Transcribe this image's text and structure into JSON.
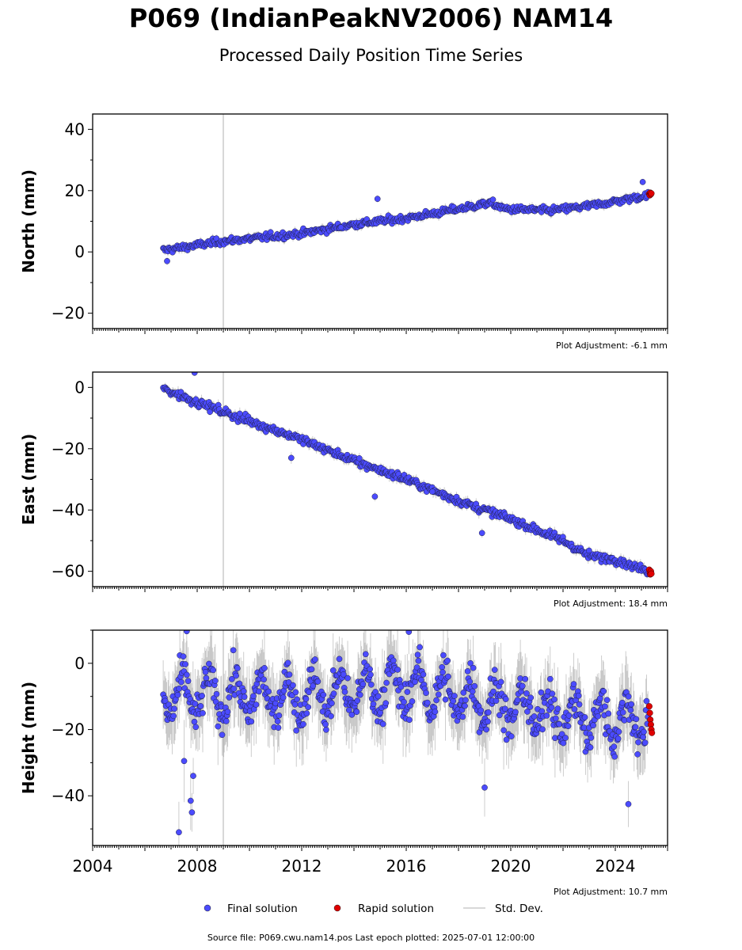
{
  "page": {
    "title": "P069 (IndianPeakNV2006) NAM14",
    "subtitle": "Processed Daily Position Time Series"
  },
  "footer": {
    "source": "Source file: P069.cwu.nam14.pos  Last epoch plotted: 2025-07-01 12:00:00"
  },
  "legend": {
    "items": [
      {
        "label": "Final solution",
        "color": "#4b4bff",
        "kind": "dot"
      },
      {
        "label": "Rapid solution",
        "color": "#e00000",
        "kind": "dot"
      },
      {
        "label": "Std. Dev.",
        "color": "#cccccc",
        "kind": "line"
      }
    ]
  },
  "chart_data": [
    {
      "type": "scatter",
      "ylabel": "North (mm)",
      "xlim": [
        2004.0,
        2026.0
      ],
      "ylim": [
        -25,
        45
      ],
      "yticks": [
        -20,
        0,
        20,
        40
      ],
      "adjustment_label": "Plot Adjustment: -6.1 mm",
      "event_line_x": 2009.0,
      "final_series": {
        "name": "Final solution",
        "x_start": 2006.7,
        "x_end": 2025.25,
        "y_start": 0.5,
        "y_end": 18.5,
        "scatter_sd": 1.0,
        "n": 520,
        "trend_nodes": [
          [
            2006.7,
            0.5
          ],
          [
            2009.0,
            3.5
          ],
          [
            2012.0,
            6.0
          ],
          [
            2014.0,
            9.0
          ],
          [
            2016.0,
            11.0
          ],
          [
            2018.0,
            14.0
          ],
          [
            2019.2,
            16.0
          ],
          [
            2019.8,
            14.0
          ],
          [
            2021.5,
            13.5
          ],
          [
            2023.0,
            15.0
          ],
          [
            2024.0,
            16.5
          ],
          [
            2025.25,
            18.5
          ]
        ]
      },
      "rapid_series": {
        "name": "Rapid solution",
        "x": [
          2025.3,
          2025.32,
          2025.34,
          2025.36,
          2025.38
        ],
        "y": [
          19.0,
          18.5,
          19.3,
          18.8,
          19.1
        ]
      },
      "outliers": [
        [
          2006.85,
          -3.0
        ],
        [
          2014.9,
          17.3
        ],
        [
          2025.05,
          22.8
        ],
        [
          2013.5,
          8.0
        ]
      ]
    },
    {
      "type": "scatter",
      "ylabel": "East (mm)",
      "xlim": [
        2004.0,
        2026.0
      ],
      "ylim": [
        -65,
        5
      ],
      "yticks": [
        -60,
        -40,
        -20,
        0
      ],
      "adjustment_label": "Plot Adjustment: 18.4 mm",
      "event_line_x": 2009.0,
      "final_series": {
        "name": "Final solution",
        "x_start": 2006.7,
        "x_end": 2025.25,
        "y_start": -0.5,
        "y_end": -60.0,
        "scatter_sd": 1.2,
        "n": 520,
        "trend_nodes": [
          [
            2006.7,
            -0.5
          ],
          [
            2009.0,
            -8.0
          ],
          [
            2012.0,
            -17.0
          ],
          [
            2014.0,
            -24.0
          ],
          [
            2016.0,
            -30.0
          ],
          [
            2018.0,
            -37.0
          ],
          [
            2020.0,
            -43.0
          ],
          [
            2022.0,
            -50.0
          ],
          [
            2023.0,
            -55.0
          ],
          [
            2024.0,
            -56.0
          ],
          [
            2025.25,
            -60.0
          ]
        ]
      },
      "rapid_series": {
        "name": "Rapid solution",
        "x": [
          2025.3,
          2025.32,
          2025.34,
          2025.36,
          2025.38
        ],
        "y": [
          -59.5,
          -60.5,
          -61.0,
          -60.0,
          -60.8
        ]
      },
      "outliers": [
        [
          2007.9,
          4.8
        ],
        [
          2014.8,
          -35.6
        ],
        [
          2017.0,
          -34.0
        ],
        [
          2018.9,
          -47.5
        ],
        [
          2011.6,
          -23.0
        ]
      ]
    },
    {
      "type": "scatter",
      "ylabel": "Height (mm)",
      "xlim": [
        2004.0,
        2026.0
      ],
      "ylim": [
        -55,
        10
      ],
      "yticks": [
        -40,
        -20,
        0
      ],
      "xticks": [
        2004,
        2008,
        2012,
        2016,
        2020,
        2024
      ],
      "adjustment_label": "Plot Adjustment: 10.7 mm",
      "event_line_x": 2009.0,
      "final_series": {
        "name": "Final solution",
        "x_start": 2006.7,
        "x_end": 2025.25,
        "y_start": -10.0,
        "y_end": -17.0,
        "scatter_sd": 5.0,
        "n": 700,
        "seasonal_amplitude": 6.0,
        "trend_nodes": [
          [
            2006.7,
            -10.0
          ],
          [
            2012.0,
            -10.0
          ],
          [
            2016.0,
            -7.0
          ],
          [
            2020.0,
            -13.0
          ],
          [
            2023.0,
            -17.0
          ],
          [
            2025.25,
            -17.0
          ]
        ]
      },
      "rapid_series": {
        "name": "Rapid solution",
        "x": [
          2025.3,
          2025.32,
          2025.34,
          2025.36,
          2025.38,
          2025.4
        ],
        "y": [
          -13.0,
          -15.0,
          -17.0,
          -18.5,
          -20.0,
          -21.0
        ]
      },
      "outliers": [
        [
          2007.3,
          -51.0
        ],
        [
          2007.8,
          -45.0
        ],
        [
          2007.75,
          -41.5
        ],
        [
          2007.85,
          -34.0
        ],
        [
          2007.5,
          -29.5
        ],
        [
          2024.5,
          -42.5
        ],
        [
          2019.0,
          -37.5
        ],
        [
          2016.1,
          9.5
        ],
        [
          2007.6,
          9.7
        ]
      ]
    }
  ]
}
